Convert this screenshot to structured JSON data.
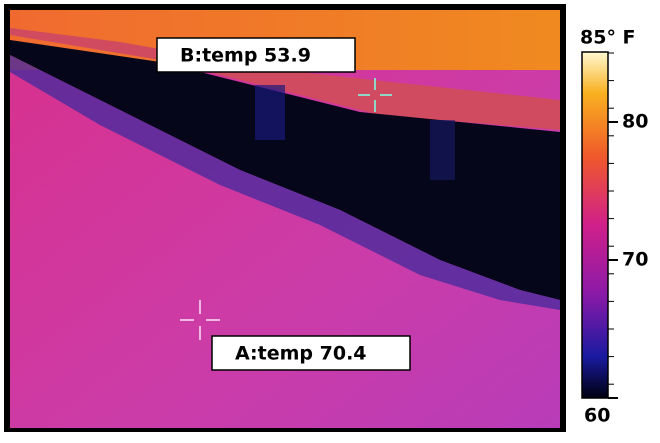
{
  "readouts": [
    {
      "text": "B:temp 53.9"
    },
    {
      "text": "A:temp 70.4"
    }
  ],
  "scale": {
    "range": [
      60,
      85
    ],
    "ticks": [
      60,
      70,
      80
    ],
    "top_label": "85° F"
  }
}
